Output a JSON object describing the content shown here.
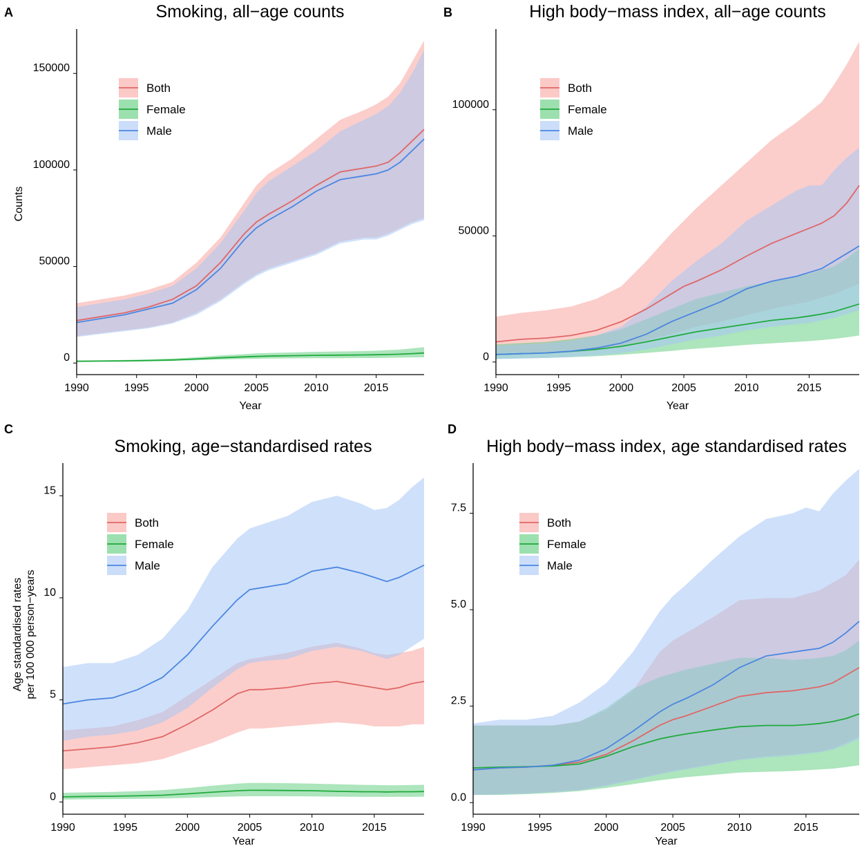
{
  "colors": {
    "both_line": "#e06666",
    "both_fill": "#f8a5a0",
    "female_line": "#1faa3c",
    "female_fill": "#5ccc7a",
    "male_line": "#4a86e0",
    "male_fill": "#a8c6f5"
  },
  "chart_data": [
    {
      "panel": "A",
      "type": "area",
      "title": "Smoking, all−age counts",
      "xlabel": "Year",
      "ylabel": "Counts",
      "xlim": [
        1990,
        2019
      ],
      "ylim": [
        -6000,
        173000
      ],
      "xticks": [
        1990,
        1995,
        2000,
        2005,
        2010,
        2015
      ],
      "yticks": [
        0,
        50000,
        100000,
        150000
      ],
      "legend": [
        "Both",
        "Female",
        "Male"
      ],
      "legend_position": "top-left",
      "x": [
        1990,
        1992,
        1994,
        1996,
        1998,
        2000,
        2002,
        2004,
        2005,
        2006,
        2008,
        2010,
        2012,
        2014,
        2015,
        2016,
        2017,
        2018,
        2019
      ],
      "series": [
        {
          "name": "Both",
          "mean": [
            22000,
            24000,
            26000,
            29000,
            33000,
            40000,
            52000,
            67000,
            73000,
            77000,
            84000,
            92000,
            99000,
            101000,
            102000,
            104000,
            109000,
            115000,
            121000
          ],
          "lower": [
            14000,
            15500,
            17000,
            18500,
            21000,
            26000,
            33000,
            42000,
            46000,
            49000,
            53000,
            57000,
            63000,
            65000,
            65000,
            67000,
            70000,
            73000,
            75000
          ],
          "upper": [
            31000,
            33000,
            35000,
            38000,
            42000,
            52000,
            65000,
            83000,
            92000,
            98000,
            106000,
            116000,
            126000,
            131000,
            134000,
            138000,
            145000,
            156000,
            167000
          ]
        },
        {
          "name": "Female",
          "mean": [
            900,
            1000,
            1100,
            1300,
            1600,
            2100,
            2700,
            3200,
            3400,
            3600,
            3800,
            4000,
            4100,
            4200,
            4300,
            4400,
            4600,
            4900,
            5200
          ],
          "lower": [
            600,
            700,
            800,
            900,
            1100,
            1400,
            1800,
            2100,
            2200,
            2300,
            2400,
            2500,
            2500,
            2600,
            2600,
            2700,
            2800,
            2900,
            3000
          ],
          "upper": [
            1300,
            1400,
            1600,
            1900,
            2300,
            3000,
            3900,
            4600,
            5000,
            5200,
            5500,
            5800,
            6000,
            6200,
            6400,
            6700,
            7000,
            7600,
            8200
          ]
        },
        {
          "name": "Male",
          "mean": [
            21000,
            23000,
            25000,
            28000,
            31000,
            38000,
            49000,
            64000,
            70000,
            74000,
            81000,
            89000,
            95000,
            97000,
            98000,
            100000,
            104000,
            110000,
            116000
          ],
          "lower": [
            13500,
            15000,
            16500,
            18000,
            20500,
            25000,
            32000,
            41000,
            45000,
            48000,
            52000,
            56000,
            62000,
            64000,
            64000,
            66000,
            69000,
            72000,
            74000
          ],
          "upper": [
            29000,
            31000,
            33000,
            36000,
            40000,
            49000,
            62000,
            79000,
            88000,
            94000,
            102000,
            110000,
            120000,
            126000,
            129000,
            133000,
            140000,
            150000,
            162000
          ]
        }
      ]
    },
    {
      "panel": "B",
      "type": "area",
      "title": "High body−mass index, all−age counts",
      "xlabel": "Year",
      "ylabel": "",
      "xlim": [
        1990,
        2019
      ],
      "ylim": [
        -5000,
        132000
      ],
      "xticks": [
        1990,
        1995,
        2000,
        2005,
        2010,
        2015
      ],
      "yticks": [
        0,
        50000,
        100000
      ],
      "legend": [
        "Both",
        "Female",
        "Male"
      ],
      "legend_position": "top-left",
      "x": [
        1990,
        1992,
        1994,
        1996,
        1998,
        2000,
        2002,
        2004,
        2005,
        2006,
        2008,
        2010,
        2012,
        2014,
        2015,
        2016,
        2017,
        2018,
        2019
      ],
      "series": [
        {
          "name": "Both",
          "mean": [
            8000,
            9000,
            9500,
            10500,
            12500,
            16000,
            21000,
            27000,
            30000,
            32000,
            36500,
            42000,
            47000,
            51000,
            53000,
            55000,
            58000,
            63000,
            70000
          ],
          "lower": [
            3500,
            3800,
            4000,
            4500,
            5200,
            6500,
            8500,
            11000,
            12500,
            14000,
            16000,
            18500,
            21000,
            23000,
            24000,
            25500,
            27000,
            29000,
            31000
          ],
          "upper": [
            18000,
            19500,
            20500,
            22000,
            25000,
            30000,
            40000,
            51000,
            56000,
            61000,
            70000,
            79000,
            88000,
            95000,
            99000,
            103000,
            110000,
            118000,
            127000
          ]
        },
        {
          "name": "Female",
          "mean": [
            3000,
            3300,
            3600,
            4200,
            5000,
            6200,
            8000,
            10000,
            11000,
            12000,
            13500,
            15000,
            16500,
            17500,
            18200,
            19000,
            20000,
            21500,
            23000
          ],
          "lower": [
            1200,
            1400,
            1600,
            1900,
            2300,
            2900,
            3600,
            4400,
            4900,
            5300,
            6000,
            6800,
            7400,
            8000,
            8300,
            8700,
            9200,
            9800,
            10500
          ],
          "upper": [
            7000,
            7500,
            8000,
            9000,
            10500,
            13000,
            17000,
            21000,
            23000,
            25000,
            27500,
            30000,
            32000,
            34000,
            35000,
            36500,
            38000,
            41000,
            45000
          ]
        },
        {
          "name": "Male",
          "mean": [
            3000,
            3300,
            3600,
            4300,
            5500,
            7500,
            11000,
            16000,
            18000,
            20000,
            24000,
            29000,
            32000,
            34000,
            35500,
            37000,
            40000,
            43000,
            46000
          ],
          "lower": [
            1200,
            1400,
            1600,
            2000,
            2600,
            3500,
            5000,
            7000,
            8000,
            9000,
            10500,
            12500,
            14000,
            15000,
            15500,
            16500,
            17500,
            19000,
            20500
          ],
          "upper": [
            6500,
            7000,
            7500,
            8500,
            10500,
            14000,
            22000,
            32000,
            36000,
            40000,
            47000,
            56000,
            62000,
            68000,
            70000,
            70000,
            76000,
            81000,
            85000
          ]
        }
      ]
    },
    {
      "panel": "C",
      "type": "area",
      "title": "Smoking,  age−standardised rates",
      "xlabel": "Year",
      "ylabel": "Age standardised rates\nper 100 000 person−years",
      "xlim": [
        1990,
        2019
      ],
      "ylim": [
        -0.6,
        16.6
      ],
      "xticks": [
        1990,
        1995,
        2000,
        2005,
        2010,
        2015
      ],
      "yticks": [
        0,
        5,
        10,
        15
      ],
      "legend": [
        "Both",
        "Female",
        "Male"
      ],
      "legend_position": "top-left",
      "x": [
        1990,
        1992,
        1994,
        1996,
        1998,
        2000,
        2002,
        2004,
        2005,
        2006,
        2008,
        2010,
        2012,
        2014,
        2015,
        2016,
        2017,
        2018,
        2019
      ],
      "series": [
        {
          "name": "Both",
          "mean": [
            2.5,
            2.6,
            2.7,
            2.9,
            3.2,
            3.8,
            4.5,
            5.3,
            5.5,
            5.5,
            5.6,
            5.8,
            5.9,
            5.7,
            5.6,
            5.5,
            5.6,
            5.8,
            5.9
          ],
          "lower": [
            1.6,
            1.7,
            1.8,
            1.9,
            2.1,
            2.5,
            2.9,
            3.4,
            3.6,
            3.6,
            3.7,
            3.8,
            3.9,
            3.8,
            3.7,
            3.7,
            3.7,
            3.8,
            3.8
          ],
          "upper": [
            3.5,
            3.6,
            3.7,
            4.0,
            4.4,
            5.2,
            6.0,
            6.8,
            7.0,
            7.1,
            7.3,
            7.6,
            7.8,
            7.5,
            7.3,
            7.2,
            7.3,
            7.4,
            7.6
          ]
        },
        {
          "name": "Female",
          "mean": [
            0.25,
            0.27,
            0.28,
            0.3,
            0.33,
            0.4,
            0.48,
            0.55,
            0.57,
            0.57,
            0.56,
            0.55,
            0.52,
            0.5,
            0.5,
            0.49,
            0.5,
            0.5,
            0.51
          ],
          "lower": [
            0.12,
            0.13,
            0.14,
            0.15,
            0.17,
            0.2,
            0.24,
            0.27,
            0.28,
            0.28,
            0.28,
            0.27,
            0.26,
            0.25,
            0.25,
            0.25,
            0.25,
            0.25,
            0.26
          ],
          "upper": [
            0.45,
            0.47,
            0.49,
            0.53,
            0.58,
            0.68,
            0.8,
            0.9,
            0.93,
            0.93,
            0.92,
            0.9,
            0.87,
            0.84,
            0.83,
            0.82,
            0.82,
            0.83,
            0.84
          ]
        },
        {
          "name": "Male",
          "mean": [
            4.8,
            5.0,
            5.1,
            5.5,
            6.1,
            7.2,
            8.6,
            9.9,
            10.4,
            10.5,
            10.7,
            11.3,
            11.5,
            11.2,
            11.0,
            10.8,
            11.0,
            11.3,
            11.6
          ],
          "lower": [
            3.0,
            3.2,
            3.3,
            3.5,
            3.9,
            4.6,
            5.6,
            6.5,
            6.8,
            6.9,
            7.0,
            7.4,
            7.6,
            7.4,
            7.2,
            7.0,
            7.2,
            7.6,
            8.0
          ],
          "upper": [
            6.6,
            6.8,
            6.8,
            7.2,
            8.0,
            9.4,
            11.5,
            12.9,
            13.4,
            13.6,
            14.0,
            14.7,
            15.0,
            14.6,
            14.3,
            14.4,
            14.8,
            15.4,
            15.9
          ]
        }
      ]
    },
    {
      "panel": "D",
      "type": "area",
      "title": "High body−mass index, age standardised rates",
      "xlabel": "Year",
      "ylabel": "",
      "xlim": [
        1990,
        2019
      ],
      "ylim": [
        -0.3,
        8.8
      ],
      "xticks": [
        1990,
        1995,
        2000,
        2005,
        2010,
        2015
      ],
      "yticks": [
        0.0,
        2.5,
        5.0,
        7.5
      ],
      "ytick_labels": [
        "0.0",
        "2.5",
        "5.0",
        "7.5"
      ],
      "legend": [
        "Both",
        "Female",
        "Male"
      ],
      "legend_position": "top-left",
      "x": [
        1990,
        1992,
        1994,
        1996,
        1998,
        2000,
        2002,
        2004,
        2005,
        2006,
        2008,
        2010,
        2012,
        2014,
        2015,
        2016,
        2017,
        2018,
        2019
      ],
      "series": [
        {
          "name": "Both",
          "mean": [
            0.85,
            0.9,
            0.92,
            0.97,
            1.05,
            1.25,
            1.6,
            2.0,
            2.15,
            2.25,
            2.5,
            2.75,
            2.85,
            2.9,
            2.95,
            3.0,
            3.1,
            3.3,
            3.5
          ],
          "lower": [
            0.2,
            0.22,
            0.24,
            0.28,
            0.33,
            0.45,
            0.6,
            0.75,
            0.82,
            0.88,
            1.0,
            1.12,
            1.2,
            1.25,
            1.28,
            1.32,
            1.4,
            1.55,
            1.7
          ],
          "upper": [
            2.0,
            2.0,
            2.0,
            2.0,
            2.1,
            2.4,
            2.9,
            3.9,
            4.2,
            4.4,
            4.8,
            5.25,
            5.3,
            5.3,
            5.4,
            5.5,
            5.7,
            5.9,
            6.3
          ]
        },
        {
          "name": "Female",
          "mean": [
            0.9,
            0.92,
            0.93,
            0.95,
            1.0,
            1.2,
            1.45,
            1.65,
            1.72,
            1.78,
            1.88,
            1.97,
            2.0,
            2.0,
            2.02,
            2.05,
            2.1,
            2.18,
            2.3
          ],
          "lower": [
            0.2,
            0.2,
            0.22,
            0.25,
            0.3,
            0.38,
            0.48,
            0.58,
            0.62,
            0.66,
            0.72,
            0.78,
            0.8,
            0.82,
            0.84,
            0.86,
            0.88,
            0.92,
            0.97
          ],
          "upper": [
            2.0,
            2.0,
            2.0,
            2.0,
            2.1,
            2.45,
            2.95,
            3.25,
            3.35,
            3.45,
            3.6,
            3.75,
            3.75,
            3.7,
            3.72,
            3.75,
            3.8,
            3.95,
            4.2
          ]
        },
        {
          "name": "Male",
          "mean": [
            0.85,
            0.9,
            0.92,
            0.97,
            1.1,
            1.4,
            1.85,
            2.35,
            2.55,
            2.7,
            3.05,
            3.5,
            3.8,
            3.9,
            3.95,
            4.0,
            4.15,
            4.4,
            4.7
          ],
          "lower": [
            0.2,
            0.21,
            0.23,
            0.27,
            0.32,
            0.43,
            0.58,
            0.73,
            0.8,
            0.86,
            0.98,
            1.1,
            1.17,
            1.22,
            1.26,
            1.3,
            1.37,
            1.5,
            1.65
          ],
          "upper": [
            2.05,
            2.15,
            2.15,
            2.25,
            2.6,
            3.1,
            3.9,
            4.95,
            5.35,
            5.65,
            6.3,
            6.9,
            7.35,
            7.5,
            7.65,
            7.55,
            8.0,
            8.35,
            8.65
          ]
        }
      ]
    }
  ]
}
